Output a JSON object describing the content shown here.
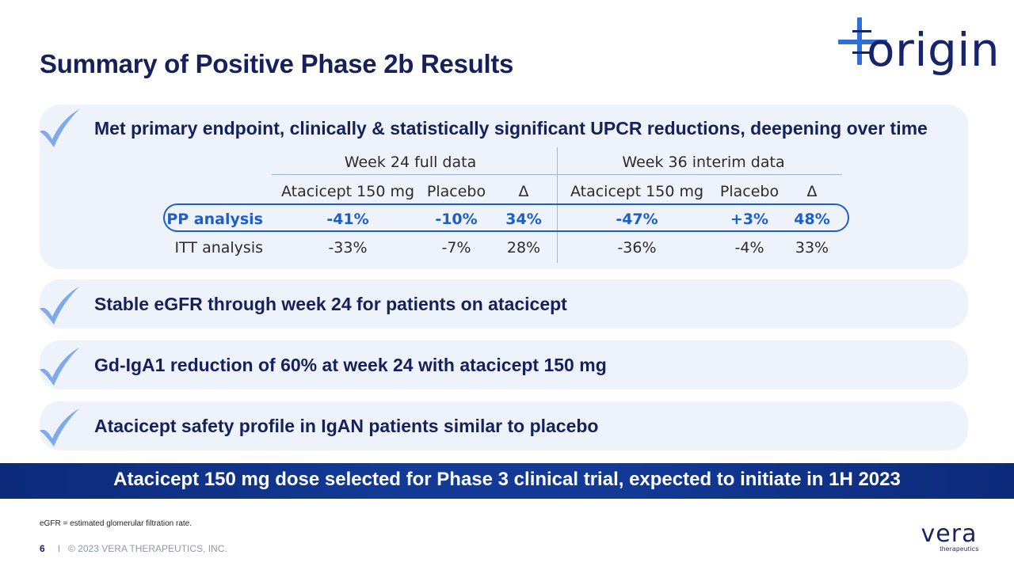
{
  "slide": {
    "title": "Summary of Positive Phase 2b Results",
    "logo_text": "origin"
  },
  "panels": [
    {
      "heading": "Met primary endpoint, clinically & statistically significant UPCR reductions, deepening over time"
    },
    {
      "heading": "Stable eGFR through week 24 for patients on atacicept"
    },
    {
      "heading": "Gd-IgA1 reduction of 60% at week 24 with atacicept 150 mg"
    },
    {
      "heading": "Atacicept safety profile in IgAN patients similar to placebo"
    }
  ],
  "table": {
    "group_headers": [
      "Week 24 full data",
      "Week 36 interim data"
    ],
    "columns": [
      "Atacicept 150 mg",
      "Placebo",
      "Δ",
      "Atacicept 150 mg",
      "Placebo",
      "Δ"
    ],
    "rows": [
      {
        "label": "PP analysis",
        "values": [
          "-41%",
          "-10%",
          "34%",
          "-47%",
          "+3%",
          "48%"
        ]
      },
      {
        "label": "ITT analysis",
        "values": [
          "-33%",
          "-7%",
          "28%",
          "-36%",
          "-4%",
          "33%"
        ]
      }
    ]
  },
  "banner": {
    "text": "Atacicept 150 mg dose selected for Phase 3 clinical trial, expected to initiate in 1H 2023"
  },
  "footnote": "eGFR = estimated glomerular filtration rate.",
  "footer": {
    "page_number": "6",
    "separator": "I",
    "copyright": "© 2023 VERA THERAPEUTICS, INC.",
    "brand": "vera",
    "brand_sub": "therapeutics"
  },
  "colors": {
    "navy": "#16215c",
    "highlight_blue": "#1d5fc4",
    "panel_bg": "#eef2fb",
    "check_blue": "#7fa9e8",
    "banner_blue": "#123a96"
  },
  "icons": {
    "check": "check-icon",
    "logo": "origin-cross-icon"
  }
}
